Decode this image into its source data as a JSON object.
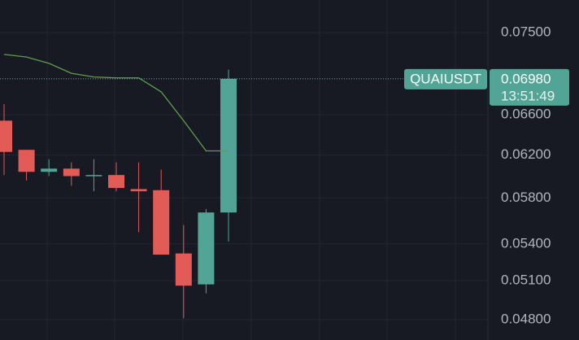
{
  "chart_data": {
    "type": "candlestick",
    "symbol": "QUAIUSDT",
    "countdown": "13:51:49",
    "last_price": 0.0698,
    "last_price_label": "0.06980",
    "categories": [
      null,
      null,
      null,
      null,
      null,
      null,
      null,
      null,
      null,
      null,
      null
    ],
    "open": [
      0.0654,
      0.0625,
      0.0604,
      0.0607,
      0.06,
      0.0601,
      0.0588,
      0.0587,
      0.0532,
      0.0507,
      0.0567
    ],
    "high": [
      0.0671,
      0.0625,
      0.0616,
      0.0613,
      0.0616,
      0.0613,
      0.0613,
      0.0606,
      0.0556,
      0.057,
      0.0708
    ],
    "low": [
      0.0601,
      0.0596,
      0.06,
      0.0591,
      0.0586,
      0.0586,
      0.055,
      0.0531,
      0.0481,
      0.05,
      0.0542
    ],
    "close": [
      0.0623,
      0.0604,
      0.0607,
      0.06,
      0.0601,
      0.0589,
      0.0586,
      0.0531,
      0.0506,
      0.0567,
      0.0698
    ],
    "up_color": "#52a596",
    "down_color": "#e25b56",
    "line": {
      "color": "#5f9e4c",
      "values": [
        0.0725,
        0.0722,
        0.0715,
        0.0704,
        0.07,
        0.0699,
        0.0699,
        0.0684,
        0.0654,
        0.0624,
        0.0624
      ]
    },
    "log_scale": true,
    "grid": true,
    "ylim": [
      0.0465,
      0.0789
    ],
    "yticks": [
      {
        "value": 0.075,
        "label": "0.07500"
      },
      {
        "value": 0.066,
        "label": "0.06600"
      },
      {
        "value": 0.062,
        "label": "0.06200"
      },
      {
        "value": 0.058,
        "label": "0.05800"
      },
      {
        "value": 0.054,
        "label": "0.05400"
      },
      {
        "value": 0.051,
        "label": "0.05100"
      },
      {
        "value": 0.048,
        "label": "0.04800"
      }
    ]
  }
}
